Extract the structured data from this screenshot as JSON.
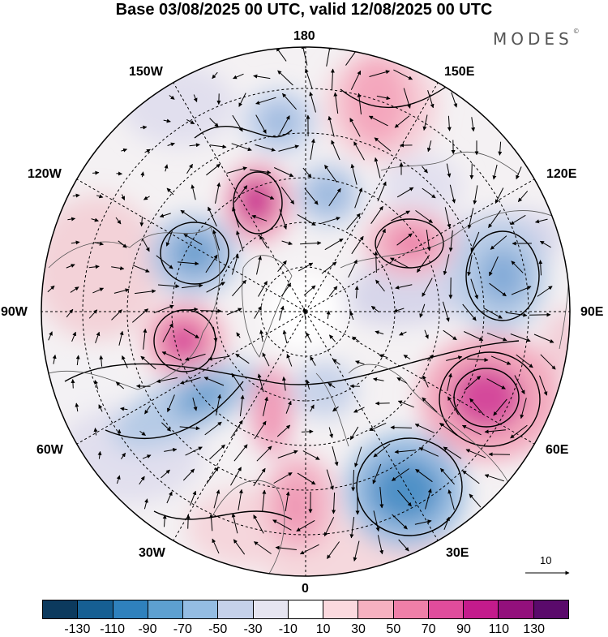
{
  "title": "Base 03/08/2025 00 UTC, valid 12/08/2025 00 UTC",
  "brand": "MODES",
  "brand_mark": "©",
  "longitude_labels": {
    "top": "180",
    "bottom": "0",
    "left": "90W",
    "right": "90E",
    "upper_left_1": "150W",
    "upper_left_2": "120W",
    "upper_right_1": "150E",
    "upper_right_2": "120E",
    "lower_left_1": "60W",
    "lower_left_2": "30W",
    "lower_right_1": "60E",
    "lower_right_2": "30E"
  },
  "reference_vector_value": "10",
  "colorbar": {
    "colors": [
      "#0c3a5e",
      "#165f93",
      "#2f81bd",
      "#5da0d0",
      "#94bde3",
      "#c5d1ea",
      "#e6e5f1",
      "#ffffff",
      "#fbd9de",
      "#f6b1c0",
      "#ef7fa8",
      "#e04c9c",
      "#c41b8c",
      "#93107c",
      "#5a0a6b"
    ],
    "ticks": [
      "-130",
      "-110",
      "-90",
      "-70",
      "-50",
      "-30",
      "-10",
      "10",
      "30",
      "50",
      "70",
      "90",
      "110",
      "130"
    ]
  },
  "anomaly_centers": [
    {
      "name": "anomaly-positive-60e",
      "value": 100,
      "color": "#d0369a"
    },
    {
      "name": "anomaly-negative-30e",
      "value": -75,
      "color": "#4f91c7"
    },
    {
      "name": "anomaly-positive-100w",
      "value": 90,
      "color": "#d84599"
    },
    {
      "name": "anomaly-positive-160w",
      "value": 90,
      "color": "#c9238f"
    },
    {
      "name": "anomaly-negative-100w",
      "value": -60,
      "color": "#6c9fcf"
    },
    {
      "name": "anomaly-negative-70w",
      "value": -55,
      "color": "#6fa2d1"
    },
    {
      "name": "anomaly-negative-100e",
      "value": -50,
      "color": "#85acd8"
    },
    {
      "name": "anomaly-positive-130e",
      "value": 60,
      "color": "#ec80a8"
    },
    {
      "name": "anomaly-positive-0",
      "value": 45,
      "color": "#ef95b3"
    },
    {
      "name": "anomaly-positive-170e",
      "value": 35,
      "color": "#f4a7bd"
    },
    {
      "name": "anomaly-negative-170w",
      "value": -40,
      "color": "#97b6dd"
    },
    {
      "name": "anomaly-negative-170e",
      "value": -40,
      "color": "#92b4dc"
    },
    {
      "name": "anomaly-positive-20w",
      "value": 40,
      "color": "#f09bb8"
    }
  ]
}
